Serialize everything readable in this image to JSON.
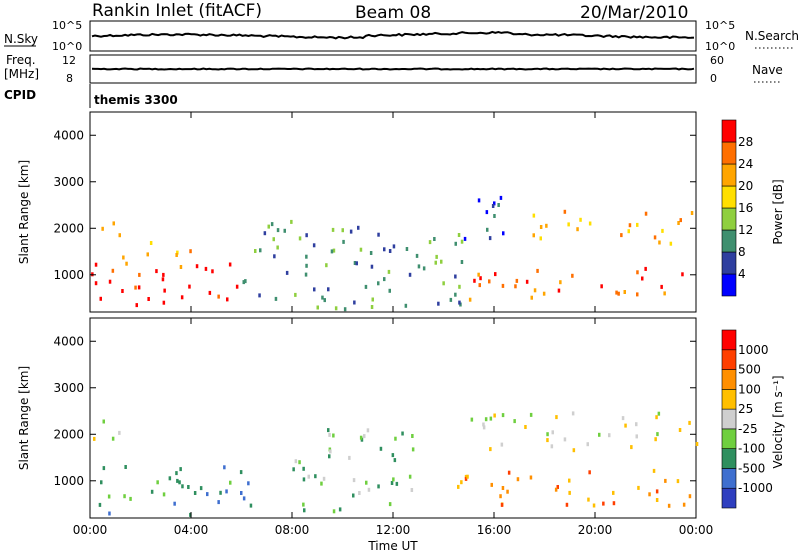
{
  "header": {
    "radar_title": "Rankin Inlet (fitACF)",
    "beam": "Beam 08",
    "date": "20/Mar/2010"
  },
  "top_panels": {
    "nsky_label": "N.Sky",
    "nsky_ticks": [
      "10^5",
      "10^0"
    ],
    "nsearch_label": "N.Search",
    "nsearch_ticks": [
      "10^5",
      "10^0"
    ],
    "freq_label_1": "Freq.",
    "freq_label_2": "[MHz]",
    "freq_ticks": [
      "12",
      "8"
    ],
    "nave_label": "Nave",
    "nave_ticks": [
      "60",
      "0"
    ],
    "cpid_label": "CPID",
    "cpid_value": "themis 3300"
  },
  "colors": {
    "power_scale": [
      "#0000ff",
      "#2f3f9f",
      "#3f8f6f",
      "#8fcf3f",
      "#ffdf00",
      "#ffa500",
      "#ff6f00",
      "#ff0000"
    ],
    "velocity_scale": [
      "#2f3fbf",
      "#3f6fcf",
      "#2f8f5f",
      "#6fcf3f",
      "#cfcfcf",
      "#ffbf00",
      "#ff8f00",
      "#ff3f00",
      "#ff0000"
    ]
  },
  "chart_data": [
    {
      "type": "heatmap",
      "panel": "power",
      "xlabel": "",
      "ylabel": "Slant Range [km]",
      "x_ticks": [
        "00:00",
        "04:00",
        "08:00",
        "12:00",
        "16:00",
        "20:00",
        "00:00"
      ],
      "y_ticks": [
        1000,
        2000,
        3000,
        4000
      ],
      "xlim": [
        0,
        24
      ],
      "ylim": [
        200,
        4500
      ],
      "colorbar_label": "Power [dB]",
      "colorbar_ticks": [
        4,
        8,
        12,
        16,
        20,
        24,
        28
      ],
      "scatter_regions": [
        {
          "t": [
            0,
            6
          ],
          "r": [
            300,
            1300
          ],
          "level": 7
        },
        {
          "t": [
            0,
            1.2
          ],
          "r": [
            1800,
            2400
          ],
          "level": 6
        },
        {
          "t": [
            1.2,
            4
          ],
          "r": [
            1200,
            1800
          ],
          "level": 5
        },
        {
          "t": [
            6,
            10
          ],
          "r": [
            300,
            2200
          ],
          "level": 2
        },
        {
          "t": [
            10,
            15
          ],
          "r": [
            300,
            2200
          ],
          "level": 2
        },
        {
          "t": [
            14.5,
            17
          ],
          "r": [
            1800,
            2800
          ],
          "level": 1
        },
        {
          "t": [
            15,
            24
          ],
          "r": [
            500,
            1200
          ],
          "level": 6
        },
        {
          "t": [
            17,
            24
          ],
          "r": [
            1700,
            2400
          ],
          "level": 5
        }
      ]
    },
    {
      "type": "heatmap",
      "panel": "velocity",
      "xlabel": "Time UT",
      "ylabel": "Slant Range [km]",
      "x_ticks": [
        "00:00",
        "04:00",
        "08:00",
        "12:00",
        "16:00",
        "20:00",
        "00:00"
      ],
      "y_ticks": [
        1000,
        2000,
        3000,
        4000
      ],
      "xlim": [
        0,
        24
      ],
      "ylim": [
        200,
        4500
      ],
      "colorbar_label": "Velocity [m s⁻¹]",
      "colorbar_ticks": [
        1000,
        500,
        100,
        25,
        -25,
        -100,
        -500,
        -1000
      ],
      "scatter_regions": [
        {
          "t": [
            0,
            6.5
          ],
          "r": [
            300,
            1400
          ],
          "level": 2
        },
        {
          "t": [
            0,
            1.3
          ],
          "r": [
            1800,
            2400
          ],
          "level": 4
        },
        {
          "t": [
            8,
            13
          ],
          "r": [
            300,
            2200
          ],
          "level": 3
        },
        {
          "t": [
            14.5,
            24
          ],
          "r": [
            500,
            1300
          ],
          "level": 6
        },
        {
          "t": [
            14.5,
            24
          ],
          "r": [
            1700,
            2500
          ],
          "level": 4
        }
      ]
    }
  ]
}
